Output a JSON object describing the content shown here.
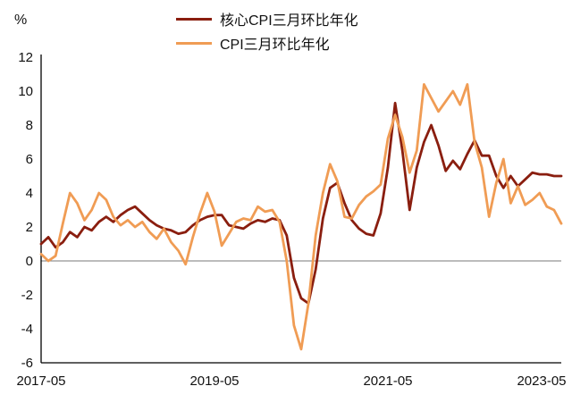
{
  "chart_data": {
    "type": "line",
    "title": "",
    "ylabel_unit": "%",
    "ylim": [
      -6,
      12
    ],
    "y_tick_step": 2,
    "grid": false,
    "legend_position": "top",
    "x_tick_labels": [
      "2017-05",
      "2019-05",
      "2021-05",
      "2023-05"
    ],
    "x_tick_indices": [
      0,
      24,
      48,
      72
    ],
    "axis_color": "#000000",
    "zero_line_color": "#7a7a7a",
    "x": [
      "2017-05",
      "2017-06",
      "2017-07",
      "2017-08",
      "2017-09",
      "2017-10",
      "2017-11",
      "2017-12",
      "2018-01",
      "2018-02",
      "2018-03",
      "2018-04",
      "2018-05",
      "2018-06",
      "2018-07",
      "2018-08",
      "2018-09",
      "2018-10",
      "2018-11",
      "2018-12",
      "2019-01",
      "2019-02",
      "2019-03",
      "2019-04",
      "2019-05",
      "2019-06",
      "2019-07",
      "2019-08",
      "2019-09",
      "2019-10",
      "2019-11",
      "2019-12",
      "2020-01",
      "2020-02",
      "2020-03",
      "2020-04",
      "2020-05",
      "2020-06",
      "2020-07",
      "2020-08",
      "2020-09",
      "2020-10",
      "2020-11",
      "2020-12",
      "2021-01",
      "2021-02",
      "2021-03",
      "2021-04",
      "2021-05",
      "2021-06",
      "2021-07",
      "2021-08",
      "2021-09",
      "2021-10",
      "2021-11",
      "2021-12",
      "2022-01",
      "2022-02",
      "2022-03",
      "2022-04",
      "2022-05",
      "2022-06",
      "2022-07",
      "2022-08",
      "2022-09",
      "2022-10",
      "2022-11",
      "2022-12",
      "2023-01",
      "2023-02",
      "2023-03",
      "2023-04",
      "2023-05"
    ],
    "series": [
      {
        "name": "核心CPI三月环比年化",
        "color": "#8A1E0F",
        "values": [
          1.0,
          1.4,
          0.8,
          1.1,
          1.7,
          1.4,
          2.0,
          1.8,
          2.3,
          2.6,
          2.3,
          2.7,
          3.0,
          3.2,
          2.8,
          2.4,
          2.1,
          1.9,
          1.8,
          1.6,
          1.7,
          2.1,
          2.4,
          2.6,
          2.7,
          2.7,
          2.1,
          2.0,
          1.9,
          2.2,
          2.4,
          2.3,
          2.5,
          2.4,
          1.5,
          -1.0,
          -2.2,
          -2.5,
          -0.5,
          2.5,
          4.3,
          4.6,
          3.4,
          2.4,
          1.9,
          1.6,
          1.5,
          2.8,
          5.5,
          9.3,
          6.5,
          3.0,
          5.5,
          7.0,
          8.0,
          6.8,
          5.3,
          5.9,
          5.4,
          6.3,
          7.1,
          6.2,
          6.2,
          5.0,
          4.3,
          5.0,
          4.4,
          4.8,
          5.2,
          5.1,
          5.1,
          5.0,
          5.0
        ]
      },
      {
        "name": "CPI三月环比年化",
        "color": "#F09C54",
        "values": [
          0.4,
          0.0,
          0.3,
          2.2,
          4.0,
          3.4,
          2.4,
          3.0,
          4.0,
          3.6,
          2.6,
          2.1,
          2.4,
          2.0,
          2.3,
          1.7,
          1.3,
          1.9,
          1.1,
          0.6,
          -0.2,
          1.4,
          2.8,
          4.0,
          2.9,
          0.9,
          1.6,
          2.3,
          2.5,
          2.4,
          3.2,
          2.9,
          3.0,
          2.3,
          0.0,
          -3.8,
          -5.2,
          -2.5,
          1.5,
          4.0,
          5.7,
          4.7,
          2.6,
          2.5,
          3.3,
          3.8,
          4.1,
          4.5,
          7.2,
          8.6,
          7.3,
          5.2,
          6.5,
          10.4,
          9.6,
          8.8,
          9.4,
          10.0,
          9.2,
          10.4,
          7.0,
          5.5,
          2.6,
          4.6,
          6.0,
          3.4,
          4.4,
          3.3,
          3.6,
          4.0,
          3.2,
          3.0,
          2.2
        ]
      }
    ]
  }
}
